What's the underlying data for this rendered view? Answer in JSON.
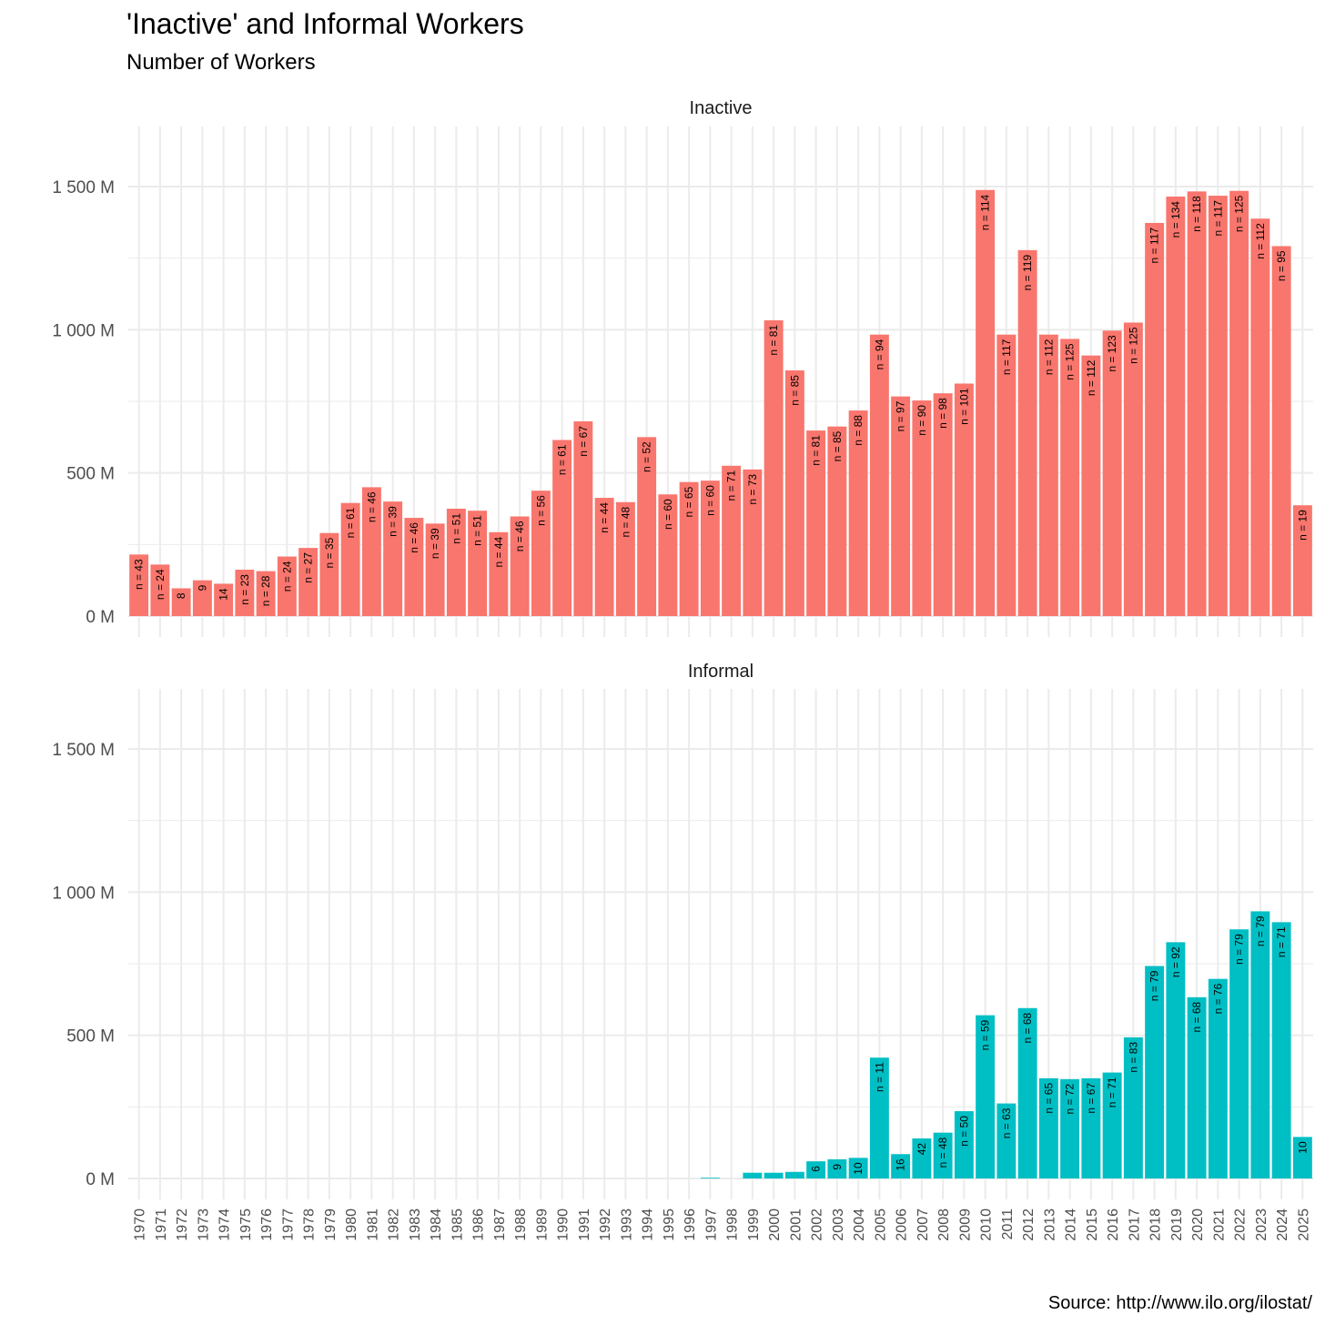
{
  "chart_data": {
    "type": "bar",
    "title": "'Inactive' and Informal Workers",
    "subtitle": "Number of Workers",
    "caption": "Source: http://www.ilo.org/ilostat/",
    "y_unit_suffix": " M",
    "ylim": [
      0,
      1700
    ],
    "yticks": [
      0,
      500,
      1000,
      1500
    ],
    "ytick_labels": [
      "0 M",
      "500 M",
      "1 000 M",
      "1 500 M"
    ],
    "categories": [
      "1970",
      "1971",
      "1972",
      "1973",
      "1974",
      "1975",
      "1976",
      "1977",
      "1978",
      "1979",
      "1980",
      "1981",
      "1982",
      "1983",
      "1984",
      "1985",
      "1986",
      "1987",
      "1988",
      "1989",
      "1990",
      "1991",
      "1992",
      "1993",
      "1994",
      "1995",
      "1996",
      "1997",
      "1998",
      "1999",
      "2000",
      "2001",
      "2002",
      "2003",
      "2004",
      "2005",
      "2006",
      "2007",
      "2008",
      "2009",
      "2010",
      "2011",
      "2012",
      "2013",
      "2014",
      "2015",
      "2016",
      "2017",
      "2018",
      "2019",
      "2020",
      "2021",
      "2022",
      "2023",
      "2024",
      "2025"
    ],
    "facets": [
      {
        "name": "Inactive",
        "color": "#F8766D",
        "values": [
          215,
          180,
          97,
          125,
          113,
          162,
          157,
          208,
          238,
          290,
          395,
          450,
          400,
          343,
          323,
          375,
          368,
          293,
          348,
          438,
          615,
          680,
          413,
          398,
          625,
          425,
          468,
          473,
          525,
          512,
          1033,
          858,
          648,
          662,
          718,
          983,
          767,
          753,
          778,
          812,
          1488,
          983,
          1278,
          983,
          968,
          910,
          997,
          1025,
          1373,
          1465,
          1483,
          1468,
          1485,
          1388,
          1292,
          387
        ],
        "labels": [
          "n = 43",
          "n = 24",
          "8",
          "9",
          "14",
          "n = 23",
          "n = 28",
          "n = 24",
          "n = 27",
          "n = 35",
          "n = 61",
          "n = 46",
          "n = 39",
          "n = 46",
          "n = 39",
          "n = 51",
          "n = 51",
          "n = 44",
          "n = 46",
          "n = 56",
          "n = 61",
          "n = 67",
          "n = 44",
          "n = 48",
          "n = 52",
          "n = 60",
          "n = 65",
          "n = 60",
          "n = 71",
          "n = 73",
          "n = 81",
          "n = 85",
          "n = 81",
          "n = 85",
          "n = 88",
          "n = 94",
          "n = 97",
          "n = 90",
          "n = 98",
          "n = 101",
          "n = 114",
          "n = 117",
          "n = 119",
          "n = 112",
          "n = 125",
          "n = 112",
          "n = 123",
          "n = 125",
          "n = 117",
          "n = 134",
          "n = 118",
          "n = 117",
          "n = 125",
          "n = 112",
          "n = 95",
          "n = 19"
        ]
      },
      {
        "name": "Informal",
        "color": "#00BFC4",
        "values": [
          0,
          0,
          0,
          0,
          0,
          0,
          0,
          0,
          0,
          0,
          0,
          0,
          0,
          0,
          0,
          0,
          0,
          0,
          0,
          0,
          0,
          0,
          0,
          0,
          0,
          0,
          0,
          2,
          0,
          20,
          20,
          23,
          60,
          67,
          72,
          422,
          85,
          140,
          160,
          235,
          570,
          262,
          595,
          350,
          347,
          350,
          370,
          493,
          742,
          825,
          633,
          697,
          870,
          933,
          895,
          145
        ],
        "labels": [
          "",
          "",
          "",
          "",
          "",
          "",
          "",
          "",
          "",
          "",
          "",
          "",
          "",
          "",
          "",
          "",
          "",
          "",
          "",
          "",
          "",
          "",
          "",
          "",
          "",
          "",
          "",
          "",
          "",
          "",
          "",
          "",
          "6",
          "9",
          "10",
          "n = 11",
          "16",
          "42",
          "n = 48",
          "n = 50",
          "n = 59",
          "n = 63",
          "n = 68",
          "n = 65",
          "n = 72",
          "n = 67",
          "n = 71",
          "n = 83",
          "n = 79",
          "n = 92",
          "n = 68",
          "n = 76",
          "n = 79",
          "n = 79",
          "n = 71",
          "10"
        ]
      }
    ],
    "grid": true,
    "legend": "none"
  }
}
